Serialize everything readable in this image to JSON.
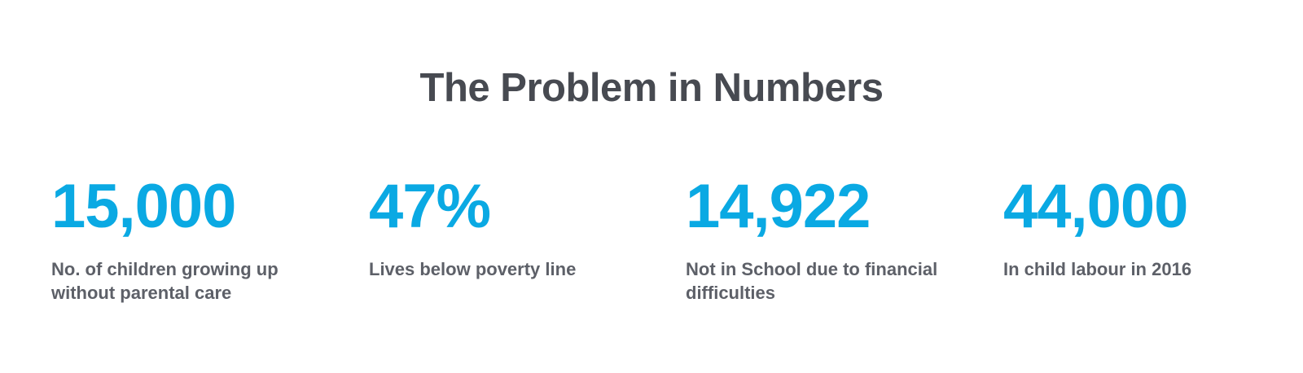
{
  "section": {
    "title": "The Problem in Numbers"
  },
  "colors": {
    "accent": "#0aa9e3",
    "heading": "#474a51",
    "label": "#5d6068"
  },
  "stats": [
    {
      "value": "15,000",
      "label": "No. of children growing up without parental care"
    },
    {
      "value": "47%",
      "label": "Lives below poverty line"
    },
    {
      "value": "14,922",
      "label": "Not in School due to financial difficulties"
    },
    {
      "value": "44,000",
      "label": "In child labour in 2016"
    }
  ]
}
